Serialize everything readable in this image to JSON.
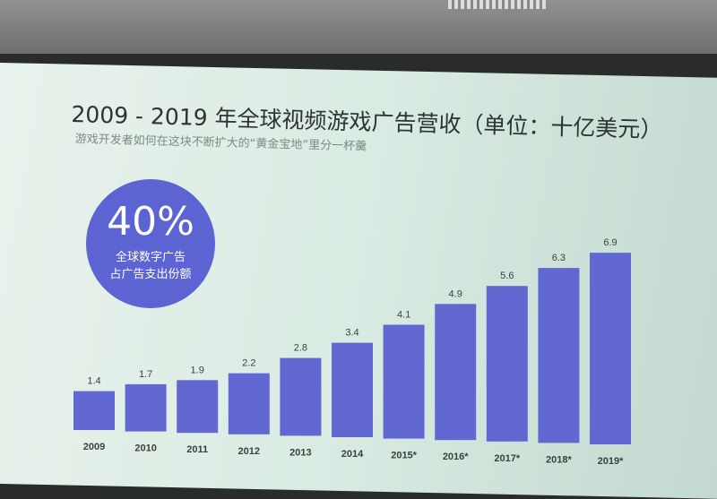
{
  "title": "2009 - 2019 年全球视频游戏广告营收（单位：十亿美元）",
  "subtitle": "游戏开发者如何在这块不断扩大的“黄金宝地”里分一杯羹",
  "callout": {
    "value": "40%",
    "line1": "全球数字广告",
    "line2": "占广告支出份额"
  },
  "colors": {
    "bar": "#6268d2",
    "circle": "#5c63d3",
    "background": "#dcebe3"
  },
  "chart_data": {
    "type": "bar",
    "categories": [
      "2009",
      "2010",
      "2011",
      "2012",
      "2013",
      "2014",
      "2015*",
      "2016*",
      "2017*",
      "2018*",
      "2019*"
    ],
    "values": [
      1.4,
      1.7,
      1.9,
      2.2,
      2.8,
      3.4,
      4.1,
      4.9,
      5.6,
      6.3,
      6.9
    ],
    "labels": [
      "1.4",
      "1.7",
      "1.9",
      "2.2",
      "2.8",
      "3.4",
      "4.1",
      "4.9",
      "5.6",
      "6.3",
      "6.9"
    ],
    "ylim": [
      0,
      7
    ],
    "grid": false
  }
}
